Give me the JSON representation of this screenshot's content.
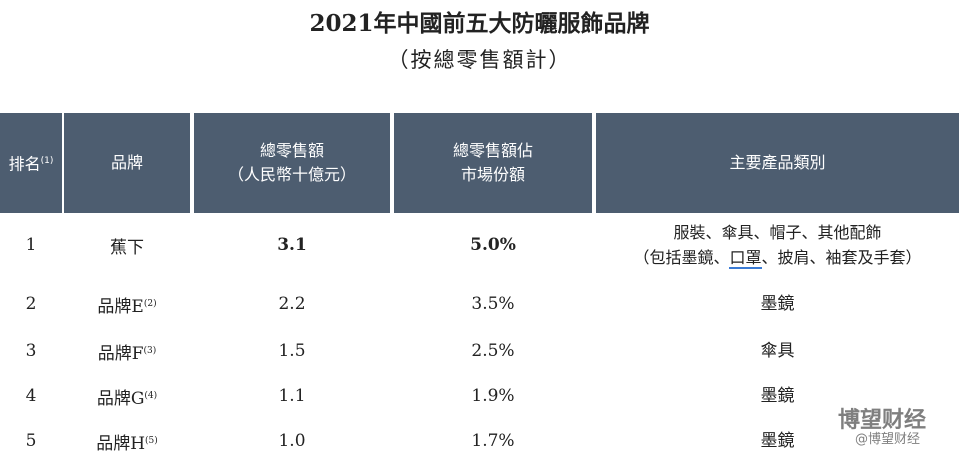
{
  "header": {
    "title": "2021年中國前五大防曬服飾品牌",
    "subtitle": "（按總零售額計）"
  },
  "table": {
    "columns": [
      {
        "text": "排名",
        "note": "(1)"
      },
      {
        "text": "品牌"
      },
      {
        "lines": [
          "總零售額",
          "（人民幣十億元）"
        ]
      },
      {
        "lines": [
          "總零售額佔",
          "市場份額"
        ]
      },
      {
        "text": "主要產品類別"
      }
    ],
    "rows": [
      {
        "rank": "1",
        "brand": "蕉下",
        "sales": "3.1",
        "share": "5.0%",
        "products": [
          "服裝、傘具、帽子、其他配飾"
        ],
        "products_line2": [
          "（包括墨鏡、",
          "口罩",
          "、披肩、袖套及手套）"
        ]
      },
      {
        "rank": "2",
        "brand": "品牌E",
        "note": "(2)",
        "sales": "2.2",
        "share": "3.5%",
        "products": [
          "墨鏡"
        ]
      },
      {
        "rank": "3",
        "brand": "品牌F",
        "note": "(3)",
        "sales": "1.5",
        "share": "2.5%",
        "products": [
          "傘具"
        ]
      },
      {
        "rank": "4",
        "brand": "品牌G",
        "note": "(4)",
        "sales": "1.1",
        "share": "1.9%",
        "products": [
          "墨鏡"
        ]
      },
      {
        "rank": "5",
        "brand": "品牌H",
        "note": "(5)",
        "sales": "1.0",
        "share": "1.7%",
        "products": [
          "墨鏡"
        ]
      }
    ]
  },
  "watermark": {
    "name": "博望财经",
    "handle": "@博望财经"
  }
}
